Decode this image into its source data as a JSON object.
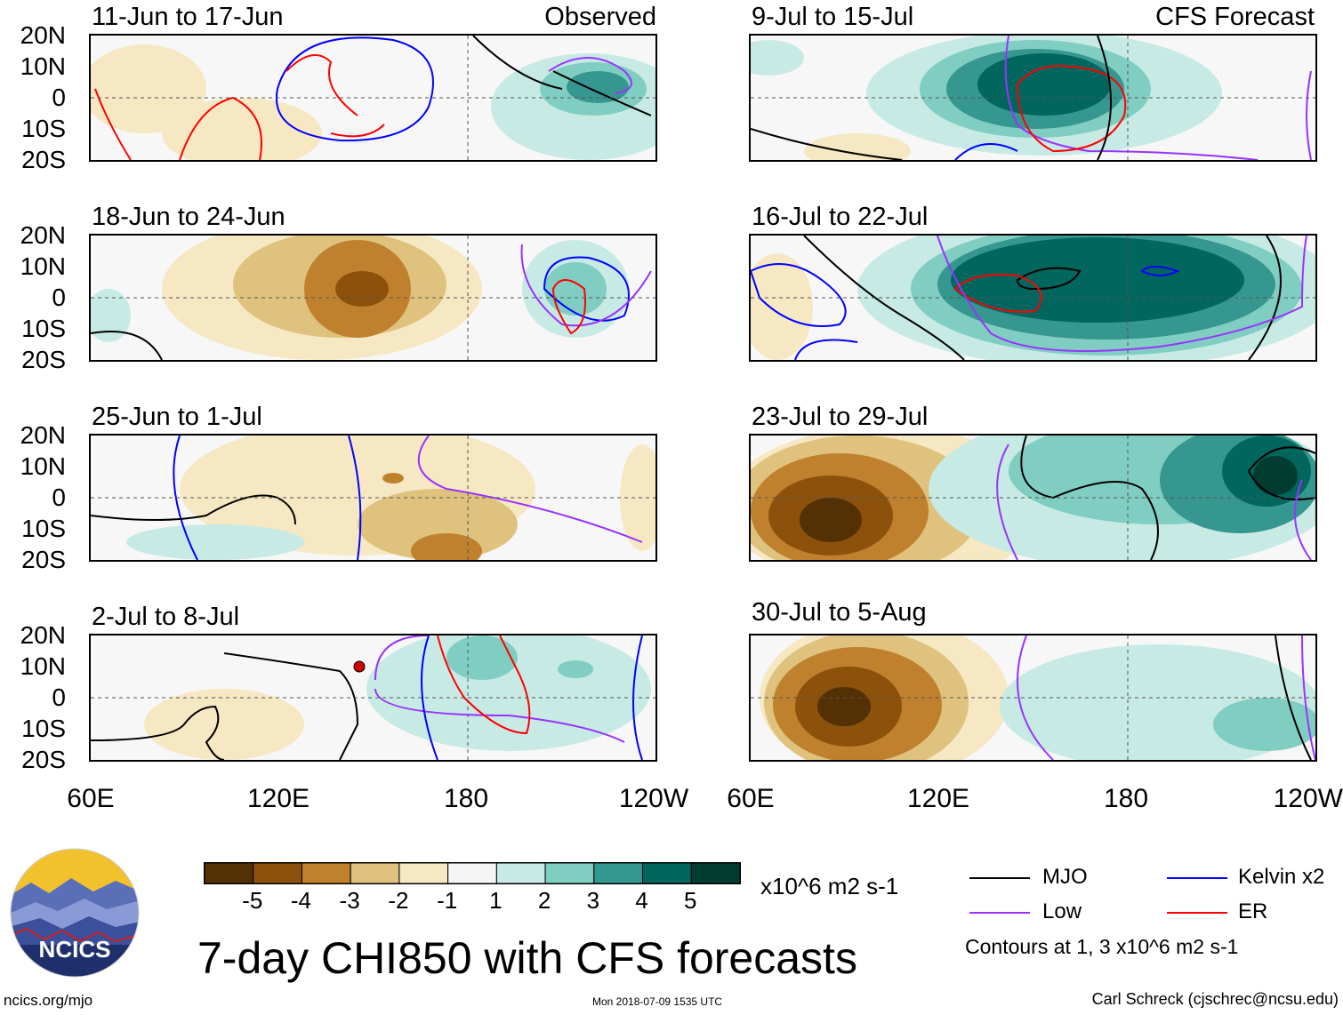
{
  "panels": [
    {
      "date": "11-Jun to 17-Jun",
      "label": "Observed"
    },
    {
      "date": "18-Jun to 24-Jun"
    },
    {
      "date": "25-Jun to 1-Jul"
    },
    {
      "date": "2-Jul to 8-Jul"
    },
    {
      "date": "9-Jul to 15-Jul",
      "label": "CFS Forecast"
    },
    {
      "date": "16-Jul to 22-Jul"
    },
    {
      "date": "23-Jul to 29-Jul"
    },
    {
      "date": "30-Jul to 5-Aug"
    }
  ],
  "lat_labels": [
    "20N",
    "10N",
    "0",
    "10S",
    "20S"
  ],
  "lon_labels": [
    "60E",
    "120E",
    "180",
    "120W"
  ],
  "colorbar": {
    "ticks": [
      "-5",
      "-4",
      "-3",
      "-2",
      "-1",
      "1",
      "2",
      "3",
      "4",
      "5"
    ],
    "unit": "x10^6 m2 s-1",
    "colors": [
      "#543005",
      "#8c510a",
      "#bf812d",
      "#dfc27d",
      "#f6e8c3",
      "#f5f5f5",
      "#c7eae5",
      "#80cdc1",
      "#35978f",
      "#01665e",
      "#003c30"
    ]
  },
  "title": "7-day CHI850 with CFS forecasts",
  "legend": {
    "items": [
      {
        "name": "MJO",
        "color": "#000000"
      },
      {
        "name": "Kelvin x2",
        "color": "#0000ff"
      },
      {
        "name": "Low",
        "color": "#9933ff"
      },
      {
        "name": "ER",
        "color": "#ff0000"
      }
    ],
    "note": "Contours at 1, 3 x10^6 m2 s-1"
  },
  "logo_text": "NCICS",
  "footer": {
    "left": "ncics.org/mjo",
    "center": "Mon 2018-07-09 1535 UTC",
    "right": "Carl Schreck (cjschrec@ncsu.edu)"
  }
}
